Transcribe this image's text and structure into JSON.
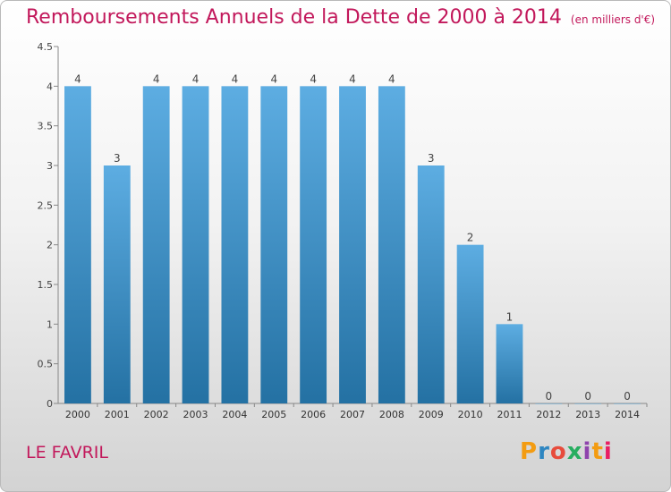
{
  "title": "Remboursements Annuels de la Dette de 2000 à 2014",
  "unit": "(en milliers d'€)",
  "place": "LE FAVRIL",
  "logo": {
    "text": "Proxiti",
    "colors": [
      "#f39c12",
      "#2e86c1",
      "#e74c3c",
      "#27ae60",
      "#8e44ad",
      "#f39c12",
      "#e91e63"
    ]
  },
  "colors": {
    "title": "#c2185b",
    "bar_top": "#5dade2",
    "bar_bottom": "#2471a3"
  },
  "chart_data": {
    "type": "bar",
    "categories": [
      "2000",
      "2001",
      "2002",
      "2003",
      "2004",
      "2005",
      "2006",
      "2007",
      "2008",
      "2009",
      "2010",
      "2011",
      "2012",
      "2013",
      "2014"
    ],
    "values": [
      4,
      3,
      4,
      4,
      4,
      4,
      4,
      4,
      4,
      3,
      2,
      1,
      0,
      0,
      0
    ],
    "data_labels": [
      "4",
      "3",
      "4",
      "4",
      "4",
      "4",
      "4",
      "4",
      "4",
      "3",
      "2",
      "1",
      "0",
      "0",
      "0"
    ],
    "yticks": [
      "0",
      "0.5",
      "1",
      "1.5",
      "2",
      "2.5",
      "3",
      "3.5",
      "4",
      "4.5"
    ],
    "ylim": [
      0,
      4.5
    ],
    "grid": false,
    "title": "Remboursements Annuels de la Dette de 2000 à 2014",
    "xlabel": "",
    "ylabel": ""
  }
}
